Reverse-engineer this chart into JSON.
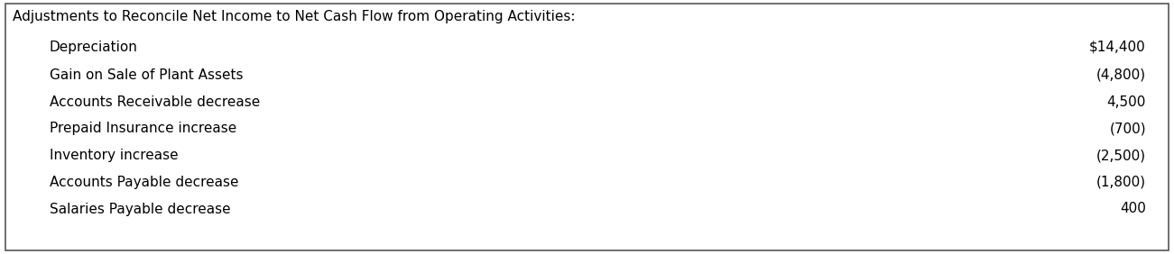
{
  "title": "Adjustments to Reconcile Net Income to Net Cash Flow from Operating Activities:",
  "rows": [
    {
      "label": "Depreciation",
      "value": "$14,400",
      "highlight": false
    },
    {
      "label": "Gain on Sale of Plant Assets",
      "value": "(4,800)",
      "highlight": true
    },
    {
      "label": "Accounts Receivable decrease",
      "value": "4,500",
      "highlight": false
    },
    {
      "label": "Prepaid Insurance increase",
      "value": "(700)",
      "highlight": false
    },
    {
      "label": "Inventory increase",
      "value": "(2,500)",
      "highlight": false
    },
    {
      "label": "Accounts Payable decrease",
      "value": "(1,800)",
      "highlight": false
    },
    {
      "label": "Salaries Payable decrease",
      "value": "400",
      "highlight": false
    }
  ],
  "highlight_color": "#c8e8f5",
  "background_color": "#ffffff",
  "border_color": "#555555",
  "text_color": "#000000",
  "title_fontsize": 11.0,
  "row_fontsize": 11.0,
  "fig_width": 13.01,
  "fig_height": 2.82,
  "dpi": 100
}
